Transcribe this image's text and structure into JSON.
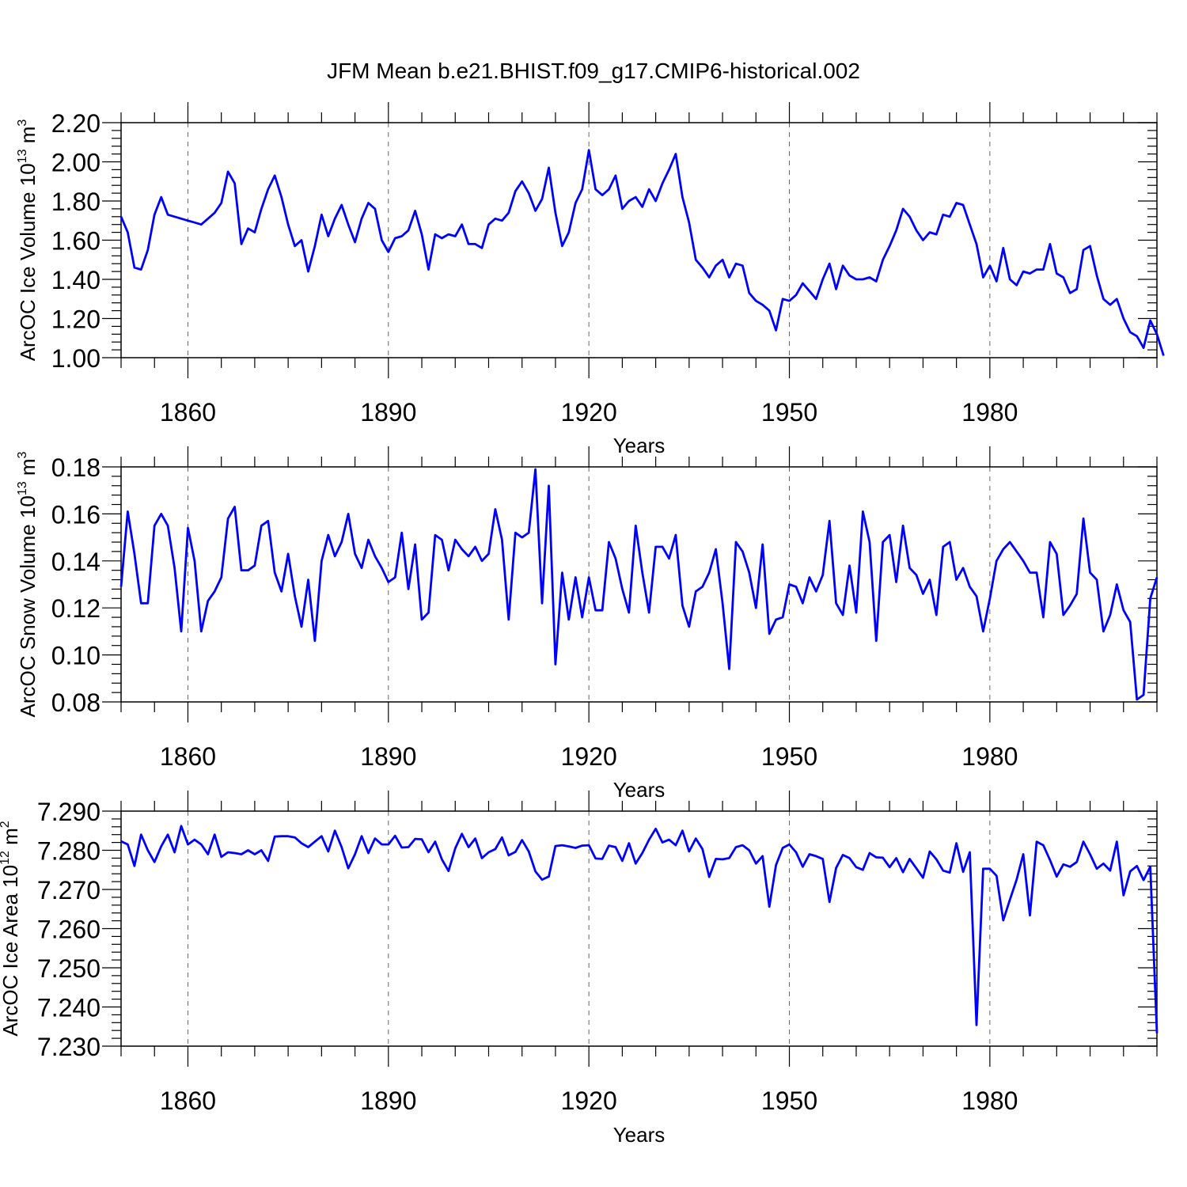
{
  "title": "JFM Mean b.e21.BHIST.f09_g17.CMIP6-historical.002",
  "colors": {
    "line": "#0000ff",
    "grid": "#666666",
    "axis": "#000000"
  },
  "chart_data": [
    {
      "type": "line",
      "id": "ice-volume",
      "ylabel_main": "ArcOC Ice Volume 10",
      "ylabel_exp": "13",
      "ylabel_unit": " m",
      "ylabel_unit_exp": "3",
      "xlabel": "Years",
      "xlim": [
        1850,
        2005
      ],
      "xticks": [
        1860,
        1890,
        1920,
        1950,
        1980
      ],
      "ylim": [
        1.0,
        2.2
      ],
      "yticks": [
        1.0,
        1.2,
        1.4,
        1.6,
        1.8,
        2.0,
        2.2
      ],
      "ytick_labels": [
        "1.00",
        "1.20",
        "1.40",
        "1.60",
        "1.80",
        "2.00",
        "2.20"
      ],
      "grid_x": true,
      "x_start": 1850,
      "values": [
        1.72,
        1.64,
        1.46,
        1.45,
        1.55,
        1.73,
        1.82,
        1.73,
        1.72,
        1.71,
        1.7,
        1.69,
        1.68,
        1.71,
        1.74,
        1.79,
        1.95,
        1.89,
        1.58,
        1.66,
        1.64,
        1.76,
        1.86,
        1.93,
        1.82,
        1.68,
        1.57,
        1.6,
        1.44,
        1.57,
        1.73,
        1.62,
        1.71,
        1.78,
        1.68,
        1.59,
        1.71,
        1.79,
        1.76,
        1.6,
        1.54,
        1.61,
        1.62,
        1.65,
        1.75,
        1.63,
        1.45,
        1.63,
        1.61,
        1.63,
        1.62,
        1.68,
        1.58,
        1.58,
        1.56,
        1.68,
        1.71,
        1.7,
        1.74,
        1.85,
        1.9,
        1.84,
        1.75,
        1.81,
        1.97,
        1.74,
        1.57,
        1.64,
        1.79,
        1.86,
        2.06,
        1.86,
        1.83,
        1.86,
        1.93,
        1.76,
        1.8,
        1.82,
        1.77,
        1.86,
        1.8,
        1.89,
        1.96,
        2.04,
        1.82,
        1.69,
        1.5,
        1.46,
        1.41,
        1.47,
        1.5,
        1.41,
        1.48,
        1.47,
        1.33,
        1.29,
        1.27,
        1.24,
        1.14,
        1.3,
        1.29,
        1.32,
        1.38,
        1.34,
        1.3,
        1.4,
        1.48,
        1.35,
        1.47,
        1.42,
        1.4,
        1.4,
        1.41,
        1.39,
        1.5,
        1.57,
        1.65,
        1.76,
        1.72,
        1.65,
        1.6,
        1.64,
        1.63,
        1.73,
        1.72,
        1.79,
        1.78,
        1.68,
        1.58,
        1.41,
        1.47,
        1.39,
        1.56,
        1.4,
        1.37,
        1.44,
        1.43,
        1.45,
        1.45,
        1.58,
        1.43,
        1.41,
        1.33,
        1.35,
        1.55,
        1.57,
        1.42,
        1.3,
        1.27,
        1.3,
        1.2,
        1.13,
        1.11,
        1.05,
        1.19,
        1.12,
        1.01
      ]
    },
    {
      "type": "line",
      "id": "snow-volume",
      "ylabel_main": "ArcOC Snow Volume 10",
      "ylabel_exp": "13",
      "ylabel_unit": " m",
      "ylabel_unit_exp": "3",
      "xlabel": "Years",
      "xlim": [
        1850,
        2005
      ],
      "xticks": [
        1860,
        1890,
        1920,
        1950,
        1980
      ],
      "ylim": [
        0.08,
        0.18
      ],
      "yticks": [
        0.08,
        0.1,
        0.12,
        0.14,
        0.16,
        0.18
      ],
      "ytick_labels": [
        "0.08",
        "0.10",
        "0.12",
        "0.14",
        "0.16",
        "0.18"
      ],
      "grid_x": true,
      "x_start": 1850,
      "values": [
        0.129,
        0.161,
        0.143,
        0.122,
        0.122,
        0.155,
        0.16,
        0.155,
        0.137,
        0.11,
        0.154,
        0.14,
        0.11,
        0.123,
        0.127,
        0.133,
        0.158,
        0.163,
        0.136,
        0.136,
        0.138,
        0.155,
        0.157,
        0.135,
        0.127,
        0.143,
        0.125,
        0.112,
        0.132,
        0.106,
        0.14,
        0.151,
        0.142,
        0.148,
        0.16,
        0.143,
        0.137,
        0.149,
        0.142,
        0.137,
        0.131,
        0.133,
        0.152,
        0.128,
        0.147,
        0.115,
        0.118,
        0.151,
        0.149,
        0.136,
        0.149,
        0.145,
        0.142,
        0.146,
        0.14,
        0.143,
        0.162,
        0.149,
        0.115,
        0.152,
        0.15,
        0.152,
        0.179,
        0.122,
        0.172,
        0.096,
        0.135,
        0.115,
        0.133,
        0.116,
        0.133,
        0.119,
        0.119,
        0.148,
        0.141,
        0.128,
        0.118,
        0.155,
        0.135,
        0.118,
        0.146,
        0.146,
        0.141,
        0.151,
        0.121,
        0.112,
        0.127,
        0.129,
        0.135,
        0.145,
        0.122,
        0.094,
        0.148,
        0.144,
        0.135,
        0.12,
        0.147,
        0.109,
        0.115,
        0.116,
        0.13,
        0.129,
        0.122,
        0.133,
        0.127,
        0.134,
        0.157,
        0.122,
        0.117,
        0.138,
        0.118,
        0.161,
        0.148,
        0.106,
        0.148,
        0.151,
        0.131,
        0.155,
        0.137,
        0.134,
        0.126,
        0.132,
        0.117,
        0.146,
        0.148,
        0.132,
        0.137,
        0.129,
        0.125,
        0.11,
        0.124,
        0.14,
        0.145,
        0.148,
        0.144,
        0.14,
        0.135,
        0.135,
        0.116,
        0.148,
        0.143,
        0.117,
        0.121,
        0.126,
        0.158,
        0.135,
        0.132,
        0.11,
        0.117,
        0.13,
        0.119,
        0.114,
        0.081,
        0.083,
        0.124,
        0.133
      ]
    },
    {
      "type": "line",
      "id": "ice-area",
      "ylabel_main": "ArcOC Ice Area 10",
      "ylabel_exp": "12",
      "ylabel_unit": " m",
      "ylabel_unit_exp": "2",
      "xlabel": "Years",
      "xlim": [
        1850,
        2005
      ],
      "xticks": [
        1860,
        1890,
        1920,
        1950,
        1980
      ],
      "ylim": [
        7.23,
        7.29
      ],
      "yticks": [
        7.23,
        7.24,
        7.25,
        7.26,
        7.27,
        7.28,
        7.29
      ],
      "ytick_labels": [
        "7.230",
        "7.240",
        "7.250",
        "7.260",
        "7.270",
        "7.280",
        "7.290"
      ],
      "grid_x": true,
      "x_start": 1850,
      "values": [
        7.2823,
        7.2815,
        7.276,
        7.284,
        7.28,
        7.277,
        7.281,
        7.284,
        7.2795,
        7.2862,
        7.2815,
        7.2827,
        7.2815,
        7.279,
        7.284,
        7.2783,
        7.2795,
        7.2793,
        7.279,
        7.28,
        7.279,
        7.28,
        7.2773,
        7.2835,
        7.2836,
        7.2836,
        7.2833,
        7.2818,
        7.2808,
        7.2822,
        7.2836,
        7.2797,
        7.285,
        7.2808,
        7.2754,
        7.279,
        7.2836,
        7.2793,
        7.283,
        7.2815,
        7.2815,
        7.2837,
        7.2807,
        7.2808,
        7.2829,
        7.2828,
        7.2795,
        7.2822,
        7.2777,
        7.2747,
        7.2805,
        7.2842,
        7.2808,
        7.283,
        7.278,
        7.2795,
        7.2803,
        7.2833,
        7.2787,
        7.2796,
        7.2826,
        7.2797,
        7.2746,
        7.2725,
        7.2733,
        7.2811,
        7.2813,
        7.281,
        7.2806,
        7.2812,
        7.2813,
        7.2779,
        7.2778,
        7.2812,
        7.2808,
        7.2773,
        7.2818,
        7.2766,
        7.2793,
        7.2827,
        7.2855,
        7.282,
        7.2827,
        7.2813,
        7.285,
        7.2797,
        7.283,
        7.2803,
        7.2732,
        7.2778,
        7.2777,
        7.278,
        7.2808,
        7.2813,
        7.28,
        7.2766,
        7.2785,
        7.2656,
        7.2762,
        7.2806,
        7.2815,
        7.2795,
        7.2758,
        7.279,
        7.2785,
        7.2778,
        7.2668,
        7.2755,
        7.2788,
        7.278,
        7.2757,
        7.275,
        7.2793,
        7.2782,
        7.2781,
        7.2757,
        7.278,
        7.2744,
        7.2778,
        7.2754,
        7.273,
        7.2797,
        7.2777,
        7.2748,
        7.2743,
        7.2818,
        7.2745,
        7.2795,
        7.2354,
        7.2753,
        7.2753,
        7.2735,
        7.2621,
        7.2674,
        7.2725,
        7.279,
        7.2634,
        7.2822,
        7.2813,
        7.2775,
        7.2733,
        7.2764,
        7.2758,
        7.277,
        7.2822,
        7.279,
        7.2753,
        7.2766,
        7.2748,
        7.2822,
        7.2685,
        7.2746,
        7.276,
        7.2724,
        7.2758,
        7.2333
      ]
    }
  ]
}
